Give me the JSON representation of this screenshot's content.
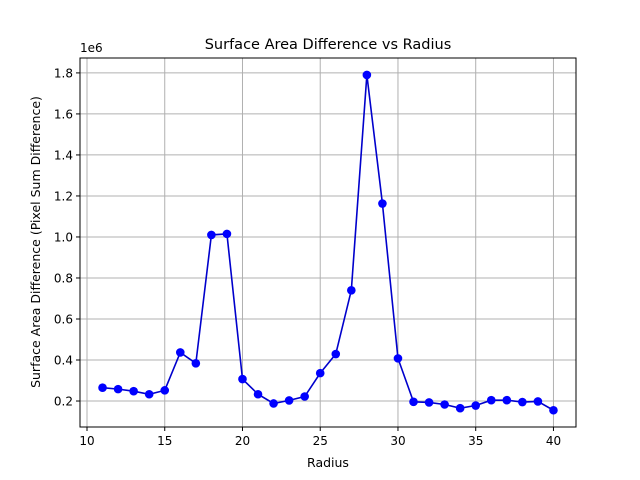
{
  "chart_data": {
    "type": "line",
    "title": "Surface Area Difference vs Radius",
    "xlabel": "Radius",
    "ylabel": "Surface Area Difference (Pixel Sum Difference)",
    "y_offset_label": "1e6",
    "y_scale_factor": 1000000,
    "xlim": [
      9.55,
      41.45
    ],
    "ylim": [
      0.0733,
      1.8727
    ],
    "x_ticks": [
      10,
      15,
      20,
      25,
      30,
      35,
      40
    ],
    "x_tick_labels": [
      "10",
      "15",
      "20",
      "25",
      "30",
      "35",
      "40"
    ],
    "y_ticks": [
      0.2,
      0.4,
      0.6,
      0.8,
      1.0,
      1.2,
      1.4,
      1.6,
      1.8
    ],
    "y_tick_labels": [
      "0.2",
      "0.4",
      "0.6",
      "0.8",
      "1.0",
      "1.2",
      "1.4",
      "1.6",
      "1.8"
    ],
    "grid": true,
    "line_color": "#0000cc",
    "marker_color": "#0000ff",
    "series": [
      {
        "x": [
          11,
          12,
          13,
          14,
          15,
          16,
          17,
          18,
          19,
          20,
          21,
          22,
          23,
          24,
          25,
          26,
          27,
          28,
          29,
          30,
          31,
          32,
          33,
          34,
          35,
          36,
          37,
          38,
          39,
          40
        ],
        "y": [
          0.265,
          0.258,
          0.248,
          0.233,
          0.252,
          0.437,
          0.384,
          1.01,
          1.015,
          0.307,
          0.233,
          0.188,
          0.203,
          0.222,
          0.336,
          0.429,
          0.74,
          1.79,
          1.163,
          0.408,
          0.196,
          0.193,
          0.183,
          0.165,
          0.178,
          0.204,
          0.204,
          0.195,
          0.198,
          0.155
        ]
      }
    ]
  }
}
